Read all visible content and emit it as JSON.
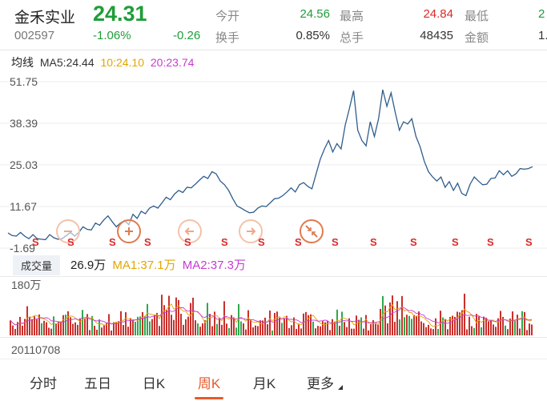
{
  "stock": {
    "name": "金禾实业",
    "price": "24.31",
    "code": "002597",
    "change_pct": "-1.06%",
    "change": "-0.26"
  },
  "quote": {
    "open_label": "今开",
    "open": "24.56",
    "high_label": "最高",
    "high": "24.84",
    "low_label": "最低",
    "low": "2",
    "turnover_rate_label": "换手",
    "turnover_rate": "0.85%",
    "total_hands_label": "总手",
    "total_hands": "48435",
    "amount_label": "金额",
    "amount": "1."
  },
  "ma": {
    "title": "均线",
    "ma5": "MA5:24.44",
    "ma10": "10:24.10",
    "ma20": "20:23.74",
    "colors": {
      "ma5": "#333333",
      "ma10": "#e3a600",
      "ma20": "#c73bd1"
    }
  },
  "price_axis": [
    "51.75",
    "38.39",
    "25.03",
    "11.67",
    "-1.69"
  ],
  "signal_marks": [
    "S",
    "S",
    "S",
    "S",
    "S",
    "S",
    "S",
    "S",
    "S",
    "S",
    "S",
    "S",
    "S",
    "S"
  ],
  "volume": {
    "tab_label": "成交量",
    "current": "26.9万",
    "ma1": "MA1:37.1万",
    "ma2": "MA2:37.3万",
    "axis_top": "180万"
  },
  "start_date": "20110708",
  "tabs": [
    {
      "label": "分时"
    },
    {
      "label": "五日"
    },
    {
      "label": "日K"
    },
    {
      "label": "周K",
      "active": true
    },
    {
      "label": "月K"
    },
    {
      "label": "更多"
    }
  ],
  "chart_data": {
    "type": "line",
    "ylim": [
      -1.69,
      51.75
    ],
    "y_ticks": [
      51.75,
      38.39,
      25.03,
      11.67,
      -1.69
    ],
    "x_start": "20110708",
    "series": [
      {
        "values": [
          3,
          2.5,
          2,
          3.5,
          2,
          1.5,
          2.5,
          1.5,
          1,
          1.2,
          2.5,
          1.8,
          1,
          1.5,
          2.2,
          3.5,
          2,
          3.5,
          5,
          4.5,
          4,
          6.5,
          5.5,
          7.5,
          8.5,
          7,
          5,
          6.5,
          7,
          6,
          9,
          8,
          10,
          9.5,
          11,
          12,
          11,
          13,
          14.5,
          14,
          15.5,
          17,
          16,
          18,
          17.5,
          19,
          20,
          21.5,
          20.5,
          23,
          22,
          20,
          18.5,
          17,
          14,
          12,
          11,
          10.5,
          9.5,
          10,
          11,
          12,
          11.5,
          13,
          14,
          14.5,
          15,
          16.5,
          17.5,
          16.5,
          18.5,
          19.5,
          18,
          17.5,
          22,
          27,
          30,
          33,
          29,
          32,
          30,
          38,
          43,
          49,
          36,
          33,
          31,
          39,
          34,
          40,
          49,
          44,
          48,
          42,
          36,
          39,
          38,
          40,
          34,
          31,
          26,
          23,
          21,
          20,
          21,
          18,
          19.5,
          17,
          19,
          16,
          15,
          19,
          21,
          20,
          18.5,
          19,
          20.5,
          21,
          23,
          22,
          23,
          21.5,
          22,
          24,
          23.5,
          24,
          24.3
        ]
      }
    ]
  }
}
